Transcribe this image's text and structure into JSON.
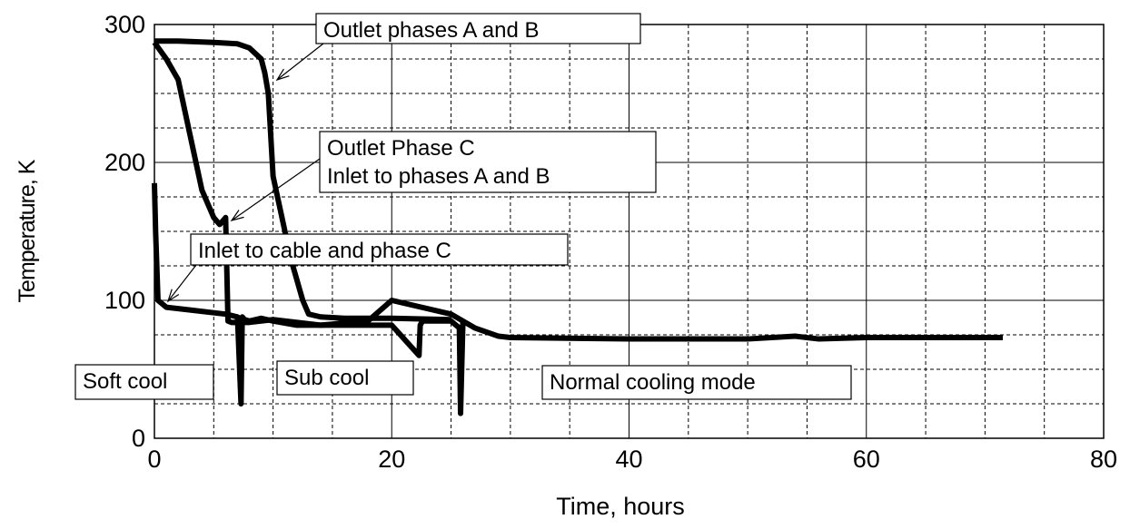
{
  "chart_data": {
    "type": "line",
    "xlabel": "Time, hours",
    "ylabel": "Temperature, K",
    "xlim": [
      0,
      80
    ],
    "xticks": [
      0,
      20,
      40,
      60,
      80
    ],
    "ylim": [
      0,
      300
    ],
    "yticks": [
      0,
      100,
      200,
      300
    ],
    "grid": true,
    "series": [
      {
        "color": "#000000",
        "x": [
          0,
          2,
          5,
          7,
          8,
          9,
          9.3,
          9.6,
          10,
          10.5,
          11,
          11.5,
          12,
          12.5,
          13,
          14,
          16,
          20,
          25
        ],
        "values": [
          288,
          288,
          287,
          286,
          283,
          275,
          265,
          250,
          190,
          170,
          150,
          130,
          115,
          100,
          90,
          88,
          87,
          87,
          86
        ]
      },
      {
        "color": "#000000",
        "x": [
          0,
          1,
          2,
          3,
          4,
          5,
          5.5,
          6,
          6.2,
          6.5,
          8,
          10,
          14,
          18,
          20,
          25,
          26
        ],
        "values": [
          287,
          275,
          260,
          220,
          180,
          160,
          155,
          160,
          85,
          84,
          84,
          86,
          82,
          85,
          100,
          90,
          85
        ]
      },
      {
        "color": "#000000",
        "x": [
          0,
          0.1,
          0.3,
          1,
          3,
          5,
          6,
          7,
          7.3,
          7.4,
          7.6,
          8,
          9,
          10,
          12,
          15,
          20,
          22.3,
          22.4,
          22.6,
          25,
          25.7,
          25.8,
          26,
          27,
          29,
          30,
          40,
          50,
          54,
          56,
          60,
          71.5
        ],
        "values": [
          185,
          150,
          100,
          95,
          93,
          91,
          90,
          88,
          25,
          88,
          86,
          85,
          87,
          85,
          82,
          82,
          82,
          60,
          82,
          85,
          85,
          80,
          18,
          85,
          80,
          74,
          73,
          72,
          72,
          74,
          72,
          73,
          73
        ]
      }
    ],
    "annotations": [
      {
        "lines": [
          "Outlet phases A and B"
        ]
      },
      {
        "lines": [
          "Outlet Phase C",
          "Inlet to phases A and B"
        ]
      },
      {
        "lines": [
          "Inlet to cable and phase C"
        ]
      },
      {
        "lines": [
          "Soft cool"
        ]
      },
      {
        "lines": [
          "Sub cool"
        ]
      },
      {
        "lines": [
          "Normal cooling mode"
        ]
      }
    ]
  }
}
